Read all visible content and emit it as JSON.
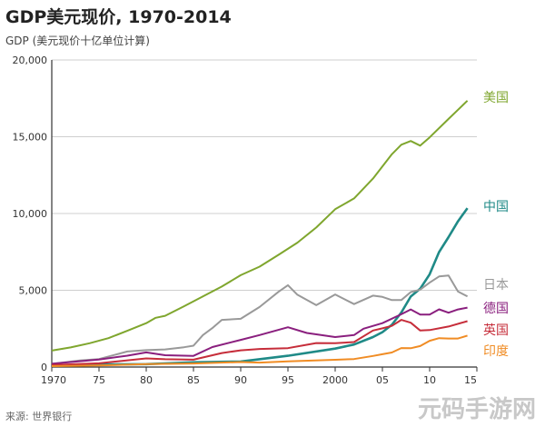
{
  "chart_data": {
    "type": "line",
    "title": "GDP美元现价, 1970-2014",
    "ylabel": "GDP (美元现价十亿单位计算)",
    "source": "来源: 世界银行",
    "xlim": [
      1970,
      2015
    ],
    "ylim": [
      0,
      20000
    ],
    "x_ticks": [
      1970,
      1975,
      1980,
      1985,
      1990,
      1995,
      2000,
      2005,
      2010,
      2015
    ],
    "x_tick_labels": [
      "1970",
      "75",
      "80",
      "85",
      "90",
      "95",
      "2000",
      "05",
      "10",
      "15"
    ],
    "y_ticks": [
      0,
      5000,
      10000,
      15000,
      20000
    ],
    "y_tick_labels": [
      "0",
      "5,000",
      "10,000",
      "15,000",
      "20,000"
    ],
    "grid": "y",
    "legend": "end-of-line labels",
    "series": [
      {
        "name": "美国",
        "color": "#7fa62e",
        "x": [
          1970,
          1972,
          1974,
          1976,
          1978,
          1980,
          1981,
          1982,
          1984,
          1986,
          1988,
          1990,
          1992,
          1994,
          1996,
          1998,
          2000,
          2002,
          2004,
          2006,
          2007,
          2008,
          2009,
          2010,
          2012,
          2014
        ],
        "y": [
          1070,
          1280,
          1550,
          1880,
          2360,
          2860,
          3210,
          3340,
          3960,
          4600,
          5240,
          5980,
          6540,
          7310,
          8100,
          9090,
          10280,
          10980,
          12270,
          13860,
          14480,
          14720,
          14420,
          14960,
          16160,
          17350
        ]
      },
      {
        "name": "中国",
        "color": "#1f8a87",
        "x": [
          1970,
          1975,
          1980,
          1985,
          1990,
          1995,
          2000,
          2002,
          2004,
          2005,
          2006,
          2007,
          2008,
          2009,
          2010,
          2011,
          2012,
          2013,
          2014
        ],
        "y": [
          92,
          163,
          191,
          309,
          360,
          734,
          1200,
          1470,
          1950,
          2270,
          2750,
          3550,
          4590,
          5100,
          6040,
          7490,
          8460,
          9490,
          10350
        ]
      },
      {
        "name": "日本",
        "color": "#999999",
        "x": [
          1970,
          1973,
          1975,
          1978,
          1980,
          1982,
          1984,
          1985,
          1986,
          1987,
          1988,
          1990,
          1992,
          1994,
          1995,
          1996,
          1998,
          2000,
          2002,
          2004,
          2005,
          2006,
          2007,
          2008,
          2009,
          2010,
          2011,
          2012,
          2013,
          2014
        ],
        "y": [
          210,
          430,
          520,
          1010,
          1100,
          1150,
          1290,
          1390,
          2080,
          2540,
          3070,
          3140,
          3910,
          4900,
          5330,
          4710,
          4030,
          4730,
          4100,
          4650,
          4570,
          4360,
          4360,
          4880,
          5040,
          5500,
          5900,
          5960,
          4920,
          4600
        ]
      },
      {
        "name": "德国",
        "color": "#8a1f7e",
        "x": [
          1970,
          1975,
          1978,
          1980,
          1982,
          1985,
          1987,
          1990,
          1992,
          1995,
          1997,
          2000,
          2002,
          2003,
          2005,
          2007,
          2008,
          2009,
          2010,
          2011,
          2012,
          2013,
          2014
        ],
        "y": [
          215,
          490,
          740,
          950,
          770,
          730,
          1300,
          1770,
          2080,
          2590,
          2220,
          1950,
          2080,
          2500,
          2860,
          3440,
          3750,
          3420,
          3420,
          3760,
          3540,
          3750,
          3870
        ]
      },
      {
        "name": "英国",
        "color": "#c62d3a",
        "x": [
          1970,
          1975,
          1980,
          1982,
          1985,
          1988,
          1990,
          1992,
          1995,
          1998,
          2000,
          2002,
          2004,
          2005,
          2006,
          2007,
          2008,
          2009,
          2010,
          2012,
          2014
        ],
        "y": [
          130,
          240,
          560,
          510,
          480,
          910,
          1090,
          1180,
          1230,
          1560,
          1550,
          1630,
          2380,
          2520,
          2680,
          3070,
          2890,
          2380,
          2410,
          2640,
          2990
        ]
      },
      {
        "name": "印度",
        "color": "#f08c24",
        "x": [
          1970,
          1975,
          1980,
          1985,
          1990,
          1992,
          1995,
          2000,
          2002,
          2004,
          2005,
          2006,
          2007,
          2008,
          2009,
          2010,
          2011,
          2012,
          2013,
          2014
        ],
        "y": [
          62,
          98,
          189,
          232,
          326,
          288,
          367,
          476,
          523,
          722,
          834,
          949,
          1239,
          1224,
          1365,
          1708,
          1880,
          1860,
          1860,
          2050
        ]
      }
    ]
  },
  "watermark": "元码手游网"
}
